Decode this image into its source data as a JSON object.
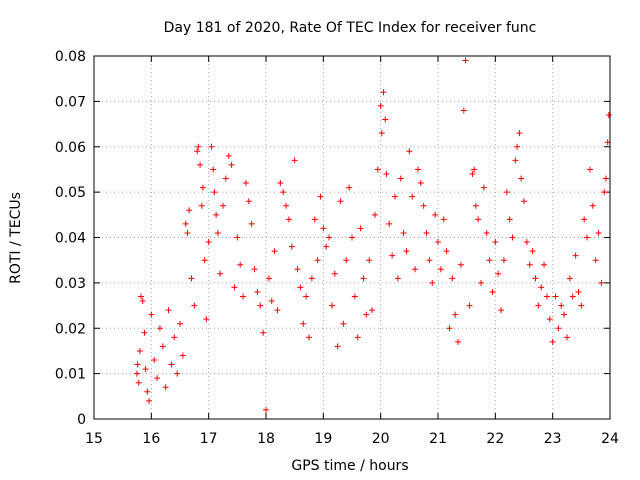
{
  "chart_data": {
    "type": "scatter",
    "title": "Day 181 of 2020, Rate Of TEC Index for receiver func",
    "xlabel": "GPS time / hours",
    "ylabel": "ROTI / TECUs",
    "xlim": [
      15,
      24
    ],
    "ylim": [
      0,
      0.08
    ],
    "grid": true,
    "marker": "+",
    "marker_color": "#ff0000",
    "x_ticks": [
      "15",
      "16",
      "17",
      "18",
      "19",
      "20",
      "21",
      "22",
      "23",
      "24"
    ],
    "y_ticks": [
      "0",
      "0.01",
      "0.02",
      "0.03",
      "0.04",
      "0.05",
      "0.06",
      "0.07",
      "0.08"
    ],
    "series": [
      {
        "name": "ROTI",
        "points": [
          [
            15.75,
            0.01
          ],
          [
            15.76,
            0.012
          ],
          [
            15.78,
            0.008
          ],
          [
            15.8,
            0.015
          ],
          [
            15.82,
            0.027
          ],
          [
            15.85,
            0.026
          ],
          [
            15.88,
            0.019
          ],
          [
            15.9,
            0.011
          ],
          [
            15.93,
            0.006
          ],
          [
            15.96,
            0.004
          ],
          [
            16.0,
            0.023
          ],
          [
            16.05,
            0.013
          ],
          [
            16.1,
            0.009
          ],
          [
            16.15,
            0.02
          ],
          [
            16.2,
            0.016
          ],
          [
            16.25,
            0.007
          ],
          [
            16.3,
            0.024
          ],
          [
            16.35,
            0.012
          ],
          [
            16.4,
            0.018
          ],
          [
            16.45,
            0.01
          ],
          [
            16.5,
            0.021
          ],
          [
            16.55,
            0.014
          ],
          [
            16.6,
            0.043
          ],
          [
            16.63,
            0.041
          ],
          [
            16.66,
            0.046
          ],
          [
            16.7,
            0.031
          ],
          [
            16.75,
            0.025
          ],
          [
            16.8,
            0.059
          ],
          [
            16.82,
            0.06
          ],
          [
            16.85,
            0.056
          ],
          [
            16.88,
            0.047
          ],
          [
            16.9,
            0.051
          ],
          [
            16.93,
            0.035
          ],
          [
            16.96,
            0.022
          ],
          [
            17.0,
            0.039
          ],
          [
            17.05,
            0.06
          ],
          [
            17.08,
            0.055
          ],
          [
            17.1,
            0.05
          ],
          [
            17.13,
            0.045
          ],
          [
            17.16,
            0.041
          ],
          [
            17.2,
            0.032
          ],
          [
            17.25,
            0.047
          ],
          [
            17.3,
            0.053
          ],
          [
            17.35,
            0.058
          ],
          [
            17.4,
            0.056
          ],
          [
            17.45,
            0.029
          ],
          [
            17.5,
            0.04
          ],
          [
            17.55,
            0.034
          ],
          [
            17.6,
            0.027
          ],
          [
            17.65,
            0.052
          ],
          [
            17.7,
            0.048
          ],
          [
            17.75,
            0.043
          ],
          [
            17.8,
            0.033
          ],
          [
            17.85,
            0.028
          ],
          [
            17.9,
            0.025
          ],
          [
            17.95,
            0.019
          ],
          [
            18.0,
            0.002
          ],
          [
            18.05,
            0.031
          ],
          [
            18.1,
            0.026
          ],
          [
            18.15,
            0.037
          ],
          [
            18.2,
            0.024
          ],
          [
            18.25,
            0.052
          ],
          [
            18.3,
            0.05
          ],
          [
            18.35,
            0.047
          ],
          [
            18.4,
            0.044
          ],
          [
            18.45,
            0.038
          ],
          [
            18.5,
            0.057
          ],
          [
            18.55,
            0.033
          ],
          [
            18.6,
            0.029
          ],
          [
            18.65,
            0.021
          ],
          [
            18.7,
            0.027
          ],
          [
            18.75,
            0.018
          ],
          [
            18.8,
            0.031
          ],
          [
            18.85,
            0.044
          ],
          [
            18.9,
            0.035
          ],
          [
            18.95,
            0.049
          ],
          [
            19.0,
            0.042
          ],
          [
            19.05,
            0.038
          ],
          [
            19.1,
            0.04
          ],
          [
            19.15,
            0.025
          ],
          [
            19.2,
            0.032
          ],
          [
            19.25,
            0.016
          ],
          [
            19.3,
            0.048
          ],
          [
            19.35,
            0.021
          ],
          [
            19.4,
            0.035
          ],
          [
            19.45,
            0.051
          ],
          [
            19.5,
            0.04
          ],
          [
            19.55,
            0.027
          ],
          [
            19.6,
            0.018
          ],
          [
            19.65,
            0.042
          ],
          [
            19.7,
            0.031
          ],
          [
            19.75,
            0.023
          ],
          [
            19.8,
            0.035
          ],
          [
            19.85,
            0.024
          ],
          [
            19.9,
            0.045
          ],
          [
            19.95,
            0.055
          ],
          [
            20.0,
            0.069
          ],
          [
            20.02,
            0.063
          ],
          [
            20.05,
            0.072
          ],
          [
            20.08,
            0.066
          ],
          [
            20.1,
            0.054
          ],
          [
            20.15,
            0.043
          ],
          [
            20.2,
            0.036
          ],
          [
            20.25,
            0.049
          ],
          [
            20.3,
            0.031
          ],
          [
            20.35,
            0.053
          ],
          [
            20.4,
            0.041
          ],
          [
            20.45,
            0.037
          ],
          [
            20.5,
            0.059
          ],
          [
            20.55,
            0.049
          ],
          [
            20.6,
            0.033
          ],
          [
            20.65,
            0.055
          ],
          [
            20.7,
            0.052
          ],
          [
            20.75,
            0.047
          ],
          [
            20.8,
            0.041
          ],
          [
            20.85,
            0.035
          ],
          [
            20.9,
            0.03
          ],
          [
            20.95,
            0.045
          ],
          [
            21.0,
            0.039
          ],
          [
            21.05,
            0.033
          ],
          [
            21.1,
            0.044
          ],
          [
            21.15,
            0.037
          ],
          [
            21.2,
            0.02
          ],
          [
            21.25,
            0.031
          ],
          [
            21.3,
            0.023
          ],
          [
            21.35,
            0.017
          ],
          [
            21.4,
            0.034
          ],
          [
            21.45,
            0.068
          ],
          [
            21.48,
            0.079
          ],
          [
            21.55,
            0.025
          ],
          [
            21.6,
            0.054
          ],
          [
            21.63,
            0.055
          ],
          [
            21.66,
            0.047
          ],
          [
            21.7,
            0.044
          ],
          [
            21.75,
            0.03
          ],
          [
            21.8,
            0.051
          ],
          [
            21.85,
            0.041
          ],
          [
            21.9,
            0.035
          ],
          [
            21.95,
            0.028
          ],
          [
            22.0,
            0.039
          ],
          [
            22.05,
            0.032
          ],
          [
            22.1,
            0.024
          ],
          [
            22.15,
            0.035
          ],
          [
            22.2,
            0.05
          ],
          [
            22.25,
            0.044
          ],
          [
            22.3,
            0.04
          ],
          [
            22.35,
            0.057
          ],
          [
            22.38,
            0.06
          ],
          [
            22.42,
            0.063
          ],
          [
            22.45,
            0.053
          ],
          [
            22.5,
            0.048
          ],
          [
            22.55,
            0.039
          ],
          [
            22.6,
            0.034
          ],
          [
            22.65,
            0.037
          ],
          [
            22.7,
            0.031
          ],
          [
            22.75,
            0.025
          ],
          [
            22.8,
            0.029
          ],
          [
            22.85,
            0.034
          ],
          [
            22.9,
            0.027
          ],
          [
            22.95,
            0.022
          ],
          [
            23.0,
            0.017
          ],
          [
            23.05,
            0.027
          ],
          [
            23.1,
            0.02
          ],
          [
            23.15,
            0.025
          ],
          [
            23.2,
            0.023
          ],
          [
            23.25,
            0.018
          ],
          [
            23.3,
            0.031
          ],
          [
            23.35,
            0.027
          ],
          [
            23.4,
            0.036
          ],
          [
            23.45,
            0.028
          ],
          [
            23.5,
            0.025
          ],
          [
            23.55,
            0.044
          ],
          [
            23.6,
            0.04
          ],
          [
            23.65,
            0.055
          ],
          [
            23.7,
            0.047
          ],
          [
            23.75,
            0.035
          ],
          [
            23.8,
            0.041
          ],
          [
            23.85,
            0.03
          ],
          [
            23.9,
            0.05
          ],
          [
            23.93,
            0.053
          ],
          [
            23.96,
            0.061
          ],
          [
            23.98,
            0.067
          ]
        ]
      }
    ]
  }
}
